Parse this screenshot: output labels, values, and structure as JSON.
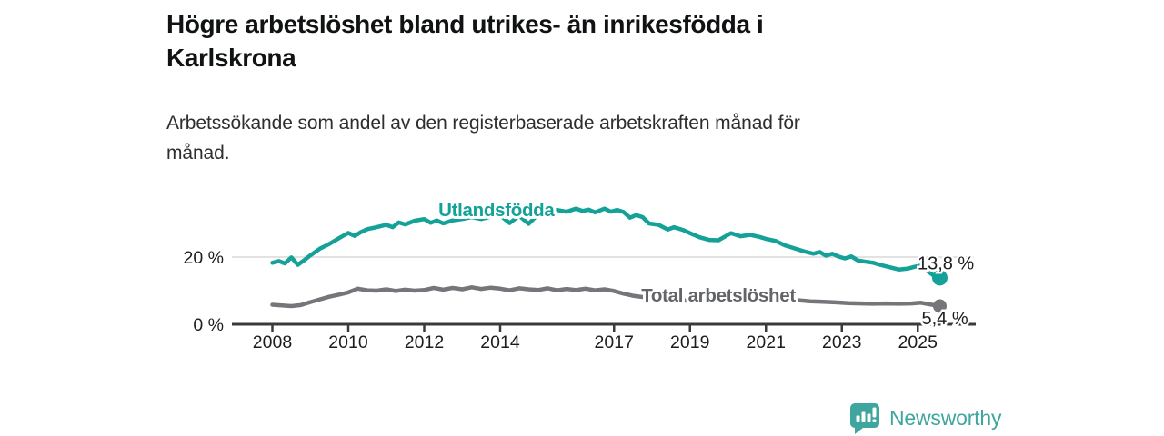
{
  "header": {
    "title_line1": "Högre arbetslöshet bland utrikes- än inrikesfödda i",
    "title_line2": "Karlskrona",
    "subtitle_line1": "Arbetssökande som andel av den registerbaserade arbetskraften månad för",
    "subtitle_line2": "månad."
  },
  "footer": {
    "brand": "Newsworthy",
    "logo_icon": "bar-chart-exclamation-badge-icon"
  },
  "colors": {
    "accent_teal": "#14a198",
    "series_gray": "#75767a",
    "gray_label": "#636469",
    "axis": "#3a3a3c",
    "grid": "#d8d8d8",
    "tick_text": "#1c1d1f",
    "value_text": "#1c1d1f",
    "logo_teal": "#3fa69f"
  },
  "chart_data": {
    "type": "line",
    "title": "Högre arbetslöshet bland utrikes- än inrikesfödda i Karlskrona",
    "subtitle": "Arbetssökande som andel av den registerbaserade arbetskraften månad för månad.",
    "grid": "single-horizontal-gridline-at-20",
    "legend": "inline-series-labels",
    "x_axis": {
      "ticks": [
        2008,
        2010,
        2012,
        2014,
        2017,
        2019,
        2021,
        2023,
        2025
      ],
      "tick_labels": [
        "2008",
        "2010",
        "2012",
        "2014",
        "2017",
        "2019",
        "2021",
        "2023",
        "2025"
      ],
      "range": [
        2006.9,
        2026.5
      ]
    },
    "y_axis": {
      "ticks": [
        0,
        20
      ],
      "tick_labels": [
        "0 %",
        "20 %"
      ],
      "unit": "%",
      "range": [
        0,
        43
      ],
      "gridline_at": 20
    },
    "series": [
      {
        "name": "Utlandsfödda",
        "color": "#14a198",
        "label_color": "#14a198",
        "label_anchor": {
          "year": 2013.9,
          "pct": 32.2
        },
        "end_label": "13,8 %",
        "end_value": 13.8,
        "points": [
          [
            2008.0,
            18.3
          ],
          [
            2008.17,
            18.8
          ],
          [
            2008.33,
            18.1
          ],
          [
            2008.5,
            19.9
          ],
          [
            2008.67,
            17.7
          ],
          [
            2008.83,
            19.0
          ],
          [
            2009.0,
            20.5
          ],
          [
            2009.25,
            22.5
          ],
          [
            2009.5,
            23.9
          ],
          [
            2009.75,
            25.6
          ],
          [
            2010.0,
            27.2
          ],
          [
            2010.17,
            26.3
          ],
          [
            2010.33,
            27.4
          ],
          [
            2010.5,
            28.3
          ],
          [
            2010.75,
            28.9
          ],
          [
            2011.0,
            29.6
          ],
          [
            2011.17,
            28.9
          ],
          [
            2011.33,
            30.3
          ],
          [
            2011.5,
            29.7
          ],
          [
            2011.75,
            30.8
          ],
          [
            2012.0,
            31.3
          ],
          [
            2012.17,
            30.2
          ],
          [
            2012.33,
            30.9
          ],
          [
            2012.5,
            30.0
          ],
          [
            2012.75,
            30.9
          ],
          [
            2013.0,
            31.3
          ],
          [
            2013.25,
            31.9
          ],
          [
            2013.5,
            31.3
          ],
          [
            2013.75,
            32.0
          ],
          [
            2014.0,
            32.4
          ],
          [
            2014.25,
            30.1
          ],
          [
            2014.5,
            32.3
          ],
          [
            2014.75,
            29.9
          ],
          [
            2015.0,
            32.7
          ],
          [
            2015.25,
            33.3
          ],
          [
            2015.5,
            34.0
          ],
          [
            2015.75,
            33.5
          ],
          [
            2016.0,
            34.4
          ],
          [
            2016.17,
            33.7
          ],
          [
            2016.33,
            34.1
          ],
          [
            2016.5,
            33.3
          ],
          [
            2016.75,
            34.4
          ],
          [
            2016.92,
            33.5
          ],
          [
            2017.08,
            34.0
          ],
          [
            2017.25,
            33.4
          ],
          [
            2017.42,
            31.7
          ],
          [
            2017.58,
            32.5
          ],
          [
            2017.75,
            31.9
          ],
          [
            2017.92,
            30.0
          ],
          [
            2018.17,
            29.6
          ],
          [
            2018.42,
            28.2
          ],
          [
            2018.58,
            28.9
          ],
          [
            2018.83,
            28.0
          ],
          [
            2019.0,
            27.1
          ],
          [
            2019.25,
            25.9
          ],
          [
            2019.5,
            25.1
          ],
          [
            2019.75,
            25.0
          ],
          [
            2019.92,
            26.1
          ],
          [
            2020.08,
            27.1
          ],
          [
            2020.33,
            26.2
          ],
          [
            2020.58,
            26.6
          ],
          [
            2020.83,
            26.0
          ],
          [
            2021.0,
            25.4
          ],
          [
            2021.25,
            24.8
          ],
          [
            2021.5,
            23.5
          ],
          [
            2021.75,
            22.6
          ],
          [
            2022.0,
            21.7
          ],
          [
            2022.25,
            21.0
          ],
          [
            2022.42,
            21.5
          ],
          [
            2022.58,
            20.4
          ],
          [
            2022.75,
            21.0
          ],
          [
            2022.92,
            20.1
          ],
          [
            2023.08,
            19.6
          ],
          [
            2023.25,
            20.2
          ],
          [
            2023.42,
            19.0
          ],
          [
            2023.58,
            18.7
          ],
          [
            2023.83,
            18.3
          ],
          [
            2024.0,
            17.7
          ],
          [
            2024.25,
            17.0
          ],
          [
            2024.5,
            16.3
          ],
          [
            2024.75,
            16.6
          ],
          [
            2024.92,
            17.1
          ],
          [
            2025.08,
            17.5
          ],
          [
            2025.25,
            15.9
          ],
          [
            2025.42,
            14.5
          ],
          [
            2025.58,
            13.8
          ]
        ]
      },
      {
        "name": "Total arbetslöshet",
        "color": "#75767a",
        "label_color": "#636469",
        "label_anchor": {
          "year": 2019.75,
          "pct": 6.8
        },
        "end_label": "5,4 %",
        "end_value": 5.4,
        "points": [
          [
            2008.0,
            5.8
          ],
          [
            2008.25,
            5.6
          ],
          [
            2008.5,
            5.4
          ],
          [
            2008.75,
            5.7
          ],
          [
            2009.0,
            6.6
          ],
          [
            2009.25,
            7.4
          ],
          [
            2009.5,
            8.2
          ],
          [
            2009.75,
            8.8
          ],
          [
            2010.0,
            9.5
          ],
          [
            2010.25,
            10.6
          ],
          [
            2010.5,
            10.1
          ],
          [
            2010.75,
            10.0
          ],
          [
            2011.0,
            10.4
          ],
          [
            2011.25,
            9.9
          ],
          [
            2011.5,
            10.3
          ],
          [
            2011.75,
            10.0
          ],
          [
            2012.0,
            10.2
          ],
          [
            2012.25,
            10.8
          ],
          [
            2012.5,
            10.3
          ],
          [
            2012.75,
            10.8
          ],
          [
            2013.0,
            10.4
          ],
          [
            2013.25,
            11.0
          ],
          [
            2013.5,
            10.5
          ],
          [
            2013.75,
            10.9
          ],
          [
            2014.0,
            10.6
          ],
          [
            2014.25,
            10.1
          ],
          [
            2014.5,
            10.7
          ],
          [
            2014.75,
            10.4
          ],
          [
            2015.0,
            10.2
          ],
          [
            2015.25,
            10.7
          ],
          [
            2015.5,
            10.1
          ],
          [
            2015.75,
            10.5
          ],
          [
            2016.0,
            10.2
          ],
          [
            2016.25,
            10.6
          ],
          [
            2016.5,
            10.1
          ],
          [
            2016.75,
            10.4
          ],
          [
            2017.0,
            9.9
          ],
          [
            2017.25,
            9.1
          ],
          [
            2017.5,
            8.5
          ],
          [
            2017.75,
            8.1
          ],
          [
            2018.0,
            7.8
          ],
          [
            2018.5,
            7.3
          ],
          [
            2019.0,
            7.0
          ],
          [
            2019.5,
            6.8
          ],
          [
            2019.92,
            7.3
          ],
          [
            2020.25,
            8.6
          ],
          [
            2020.58,
            8.4
          ],
          [
            2021.0,
            8.0
          ],
          [
            2021.5,
            7.5
          ],
          [
            2022.0,
            7.0
          ],
          [
            2022.17,
            6.8
          ],
          [
            2022.5,
            6.7
          ],
          [
            2022.83,
            6.5
          ],
          [
            2023.17,
            6.3
          ],
          [
            2023.5,
            6.2
          ],
          [
            2023.83,
            6.1
          ],
          [
            2024.17,
            6.2
          ],
          [
            2024.5,
            6.1
          ],
          [
            2024.83,
            6.2
          ],
          [
            2025.08,
            6.4
          ],
          [
            2025.33,
            5.9
          ],
          [
            2025.58,
            5.4
          ]
        ]
      }
    ]
  }
}
